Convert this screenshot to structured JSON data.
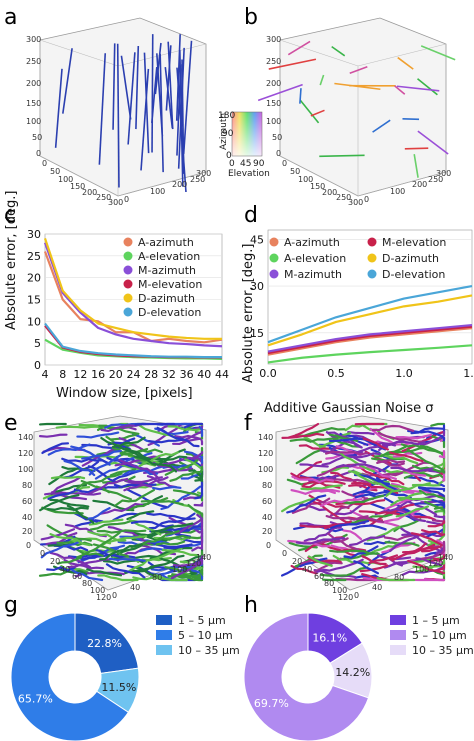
{
  "panels": {
    "a": "a",
    "b": "b",
    "c": "c",
    "d": "d",
    "e": "e",
    "f": "f",
    "g": "g",
    "h": "h"
  },
  "panel_a": {
    "z_ticks": [
      "300",
      "250",
      "200",
      "150",
      "100",
      "50",
      "0"
    ],
    "x_ticks": [
      "0",
      "50",
      "100",
      "150",
      "200",
      "250",
      "300"
    ],
    "y_ticks": [
      "0",
      "50",
      "100",
      "150",
      "200",
      "250",
      "300"
    ]
  },
  "panel_b": {
    "z_ticks": [
      "300",
      "250",
      "200",
      "150",
      "100",
      "50",
      "0"
    ],
    "x_ticks": [
      "0",
      "50",
      "100",
      "150",
      "200",
      "250",
      "300"
    ],
    "y_ticks": [
      "0",
      "50",
      "100",
      "150",
      "200",
      "250",
      "300"
    ]
  },
  "colorwheel": {
    "azimuth_label": "Azimuth",
    "elevation_label": "Elevation",
    "az_ticks": [
      "180",
      "90",
      "0"
    ],
    "el_ticks": [
      "0",
      "45",
      "90"
    ]
  },
  "panel_e": {
    "z_ticks": [
      "140",
      "120",
      "100",
      "80",
      "60",
      "40",
      "20",
      "0"
    ],
    "x_ticks": [
      "0",
      "20",
      "40",
      "60",
      "80",
      "100",
      "120",
      "140"
    ],
    "y_ticks": [
      "0",
      "20",
      "40",
      "60",
      "80",
      "100",
      "120",
      "140"
    ]
  },
  "panel_f": {
    "z_ticks": [
      "140",
      "120",
      "100",
      "80",
      "60",
      "40",
      "20",
      "0"
    ],
    "x_ticks": [
      "0",
      "20",
      "40",
      "60",
      "80",
      "100",
      "120",
      "140"
    ],
    "y_ticks": [
      "0",
      "20",
      "40",
      "60",
      "80",
      "100",
      "120",
      "140"
    ]
  },
  "colors": {
    "A-azimuth": "#e8825e",
    "A-elevation": "#5ed45e",
    "M-azimuth": "#8a4fd8",
    "M-elevation": "#c8214a",
    "D-azimuth": "#f0c419",
    "D-elevation": "#4aa6d8",
    "g_1_5": "#1f5fc4",
    "g_5_10": "#2f7de8",
    "g_10_35": "#6fc3f0",
    "h_1_5": "#6f3fe0",
    "h_5_10": "#b08af0",
    "h_10_35": "#e6dcf8"
  },
  "chart_data": [
    {
      "id": "c",
      "type": "line",
      "xlabel": "Window size, [pixels]",
      "ylabel": "Absolute error, [deg.]",
      "x": [
        4,
        8,
        12,
        16,
        20,
        24,
        28,
        32,
        36,
        40,
        44
      ],
      "xlim": [
        4,
        44
      ],
      "ylim": [
        0,
        30
      ],
      "yticks": [
        0,
        5,
        10,
        15,
        20,
        25,
        30
      ],
      "legend_position": "top-right",
      "series": [
        {
          "name": "A-azimuth",
          "color_key": "A-azimuth",
          "values": [
            26,
            15,
            10.5,
            10,
            7.5,
            7.5,
            5.5,
            6,
            5.5,
            5.2,
            5.8
          ]
        },
        {
          "name": "A-elevation",
          "color_key": "A-elevation",
          "values": [
            5.8,
            3.5,
            2.8,
            2.2,
            2.0,
            1.8,
            1.7,
            1.6,
            1.5,
            1.5,
            1.4
          ]
        },
        {
          "name": "M-azimuth",
          "color_key": "M-azimuth",
          "values": [
            28,
            16.5,
            12,
            8.5,
            7,
            6,
            5.5,
            5,
            4.8,
            4.5,
            4.3
          ]
        },
        {
          "name": "M-elevation",
          "color_key": "M-elevation",
          "values": [
            9,
            4.0,
            3.0,
            2.5,
            2.2,
            2.0,
            1.9,
            1.8,
            1.8,
            1.7,
            1.7
          ]
        },
        {
          "name": "D-azimuth",
          "color_key": "D-azimuth",
          "values": [
            29,
            17,
            12.5,
            9.5,
            8.5,
            7.5,
            7,
            6.5,
            6.2,
            6,
            6
          ]
        },
        {
          "name": "D-elevation",
          "color_key": "D-elevation",
          "values": [
            9.5,
            4.2,
            3.2,
            2.7,
            2.4,
            2.2,
            2.0,
            1.9,
            1.9,
            1.8,
            1.8
          ]
        }
      ]
    },
    {
      "id": "d",
      "type": "line",
      "xlabel": "Additive Gaussian Noise σ",
      "ylabel": "Absolute error, [deg.]",
      "x": [
        0,
        0.25,
        0.5,
        0.75,
        1.0,
        1.25,
        1.5
      ],
      "xticks": [
        "0.0",
        "0.5",
        "1.0",
        "1.5"
      ],
      "xlim": [
        0,
        1.5
      ],
      "ylim": [
        5,
        48
      ],
      "yticks": [
        15,
        30,
        45
      ],
      "legend_position": "top",
      "series": [
        {
          "name": "A-azimuth",
          "color_key": "A-azimuth",
          "values": [
            8,
            10,
            12,
            13.5,
            14.5,
            15.5,
            16.5
          ]
        },
        {
          "name": "M-elevation",
          "color_key": "M-elevation",
          "values": [
            8.5,
            10.5,
            12.5,
            14,
            15,
            16,
            17
          ]
        },
        {
          "name": "A-elevation",
          "color_key": "A-elevation",
          "values": [
            5.5,
            7,
            8,
            8.8,
            9.5,
            10.2,
            11
          ]
        },
        {
          "name": "D-azimuth",
          "color_key": "D-azimuth",
          "values": [
            11,
            14.5,
            18.5,
            21,
            23.5,
            25,
            27
          ]
        },
        {
          "name": "M-azimuth",
          "color_key": "M-azimuth",
          "values": [
            9,
            11,
            13,
            14.5,
            15.5,
            16.5,
            17.5
          ]
        },
        {
          "name": "D-elevation",
          "color_key": "D-elevation",
          "values": [
            12,
            16,
            20,
            23,
            26,
            28,
            30
          ]
        }
      ]
    },
    {
      "id": "g",
      "type": "pie",
      "legend_position": "right",
      "slices": [
        {
          "label": "1 – 5 μm",
          "value": 22.8,
          "pct_label": "22.8%",
          "color_key": "g_1_5"
        },
        {
          "label": "10 – 35 μm",
          "value": 11.5,
          "pct_label": "11.5%",
          "color_key": "g_10_35"
        },
        {
          "label": "5 – 10 μm",
          "value": 65.7,
          "pct_label": "65.7%",
          "color_key": "g_5_10"
        }
      ],
      "legend": [
        {
          "label": "1 – 5 μm",
          "color_key": "g_1_5"
        },
        {
          "label": "5 – 10 μm",
          "color_key": "g_5_10"
        },
        {
          "label": "10 – 35 μm",
          "color_key": "g_10_35"
        }
      ]
    },
    {
      "id": "h",
      "type": "pie",
      "legend_position": "right",
      "slices": [
        {
          "label": "1 – 5 μm",
          "value": 16.1,
          "pct_label": "16.1%",
          "color_key": "h_1_5"
        },
        {
          "label": "10 – 35 μm",
          "value": 14.2,
          "pct_label": "14.2%",
          "color_key": "h_10_35"
        },
        {
          "label": "5 – 10 μm",
          "value": 69.7,
          "pct_label": "69.7%",
          "color_key": "h_5_10"
        }
      ],
      "legend": [
        {
          "label": "1 – 5 μm",
          "color_key": "h_1_5"
        },
        {
          "label": "5 – 10 μm",
          "color_key": "h_5_10"
        },
        {
          "label": "10 – 35 μm",
          "color_key": "h_10_35"
        }
      ]
    }
  ]
}
